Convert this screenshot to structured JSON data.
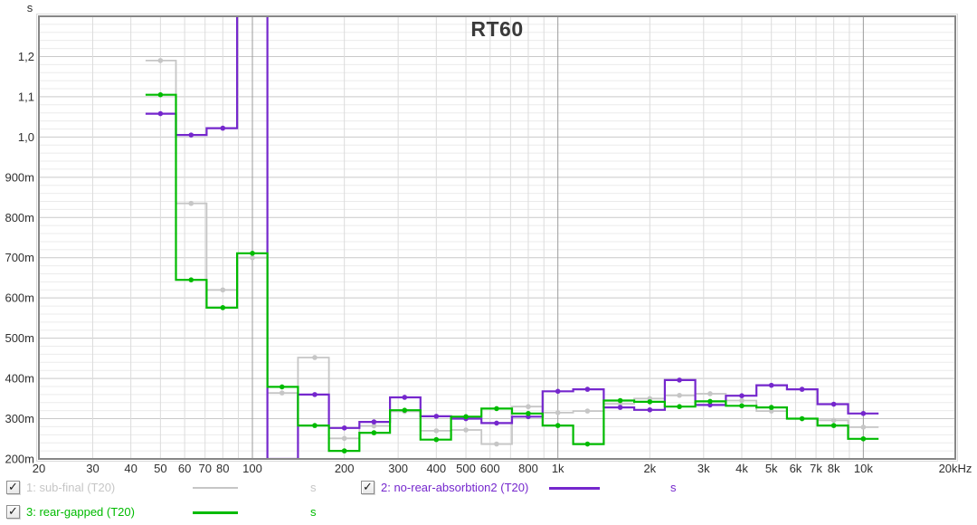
{
  "chart_data": {
    "type": "line",
    "style": "stepped-octave-bands",
    "title": "RT60",
    "grid": true,
    "legend_position": "bottom",
    "y_axis": {
      "unit_label": "s",
      "min": 0.2,
      "max": 1.3,
      "major_step": 0.1,
      "minor_step": 0.02,
      "tick_labels": [
        {
          "value": 1.2,
          "label": "1,2"
        },
        {
          "value": 1.1,
          "label": "1,1"
        },
        {
          "value": 1.0,
          "label": "1,0"
        },
        {
          "value": 0.9,
          "label": "900m"
        },
        {
          "value": 0.8,
          "label": "800m"
        },
        {
          "value": 0.7,
          "label": "700m"
        },
        {
          "value": 0.6,
          "label": "600m"
        },
        {
          "value": 0.5,
          "label": "500m"
        },
        {
          "value": 0.4,
          "label": "400m"
        },
        {
          "value": 0.3,
          "label": "300m"
        },
        {
          "value": 0.2,
          "label": "200m"
        }
      ]
    },
    "x_axis": {
      "scale": "log",
      "min": 20,
      "max": 20000,
      "emphasized_lines": [
        100,
        1000,
        10000
      ],
      "ticks": [
        {
          "f": 20,
          "label": "20"
        },
        {
          "f": 30,
          "label": "30"
        },
        {
          "f": 40,
          "label": "40"
        },
        {
          "f": 50,
          "label": "50"
        },
        {
          "f": 60,
          "label": "60"
        },
        {
          "f": 70,
          "label": "70"
        },
        {
          "f": 80,
          "label": "80"
        },
        {
          "f": 100,
          "label": "100"
        },
        {
          "f": 200,
          "label": "200"
        },
        {
          "f": 300,
          "label": "300"
        },
        {
          "f": 400,
          "label": "400"
        },
        {
          "f": 500,
          "label": "500"
        },
        {
          "f": 600,
          "label": "600"
        },
        {
          "f": 800,
          "label": "800"
        },
        {
          "f": 1000,
          "label": "1k"
        },
        {
          "f": 2000,
          "label": "2k"
        },
        {
          "f": 3000,
          "label": "3k"
        },
        {
          "f": 4000,
          "label": "4k"
        },
        {
          "f": 5000,
          "label": "5k"
        },
        {
          "f": 6000,
          "label": "6k"
        },
        {
          "f": 7000,
          "label": "7k"
        },
        {
          "f": 8000,
          "label": "8k"
        },
        {
          "f": 10000,
          "label": "10k"
        },
        {
          "f": 20000,
          "label": "20kHz"
        }
      ]
    },
    "band_centers_hz": [
      50,
      63,
      80,
      100,
      125,
      160,
      200,
      250,
      315,
      400,
      500,
      630,
      800,
      1000,
      1250,
      1600,
      2000,
      2500,
      3150,
      4000,
      5000,
      6300,
      8000,
      10000
    ],
    "band_edges_hz": [
      44.7,
      56.2,
      70.8,
      89.1,
      112,
      141,
      178,
      224,
      282,
      355,
      447,
      562,
      708,
      891,
      1122,
      1413,
      1778,
      2239,
      2818,
      3548,
      4467,
      5623,
      7079,
      8913,
      11220
    ],
    "series": [
      {
        "index": 1,
        "legend": "1: sub-final (T20)",
        "unit": "s",
        "color": "#c6c6c6",
        "line_width": 1.8,
        "checked": true,
        "values_s": [
          1.19,
          0.835,
          0.62,
          0.7,
          0.364,
          0.452,
          0.251,
          0.282,
          0.318,
          0.27,
          0.272,
          0.237,
          0.33,
          0.315,
          0.319,
          0.337,
          0.35,
          0.358,
          0.362,
          0.345,
          0.319,
          0.3,
          0.296,
          0.279
        ]
      },
      {
        "index": 2,
        "legend": "2: no-rear-absorbtion2 (T20)",
        "unit": "s",
        "color": "#7527cd",
        "line_width": 2.2,
        "checked": true,
        "offscale_note": "100 Hz band exceeds chart top (clipped); 125 Hz band sits at the 200m bottom edge",
        "values_s": [
          1.058,
          1.005,
          1.022,
          1.5,
          0.2,
          0.36,
          0.277,
          0.292,
          0.353,
          0.306,
          0.3,
          0.289,
          0.305,
          0.368,
          0.373,
          0.328,
          0.322,
          0.396,
          0.334,
          0.357,
          0.383,
          0.373,
          0.336,
          0.313
        ]
      },
      {
        "index": 3,
        "legend": "3: rear-gapped (T20)",
        "unit": "s",
        "color": "#00bb00",
        "line_width": 2.2,
        "checked": true,
        "values_s": [
          1.105,
          0.645,
          0.576,
          0.711,
          0.379,
          0.283,
          0.22,
          0.265,
          0.321,
          0.248,
          0.305,
          0.325,
          0.313,
          0.283,
          0.237,
          0.345,
          0.342,
          0.33,
          0.343,
          0.332,
          0.328,
          0.3,
          0.283,
          0.25
        ]
      }
    ]
  }
}
